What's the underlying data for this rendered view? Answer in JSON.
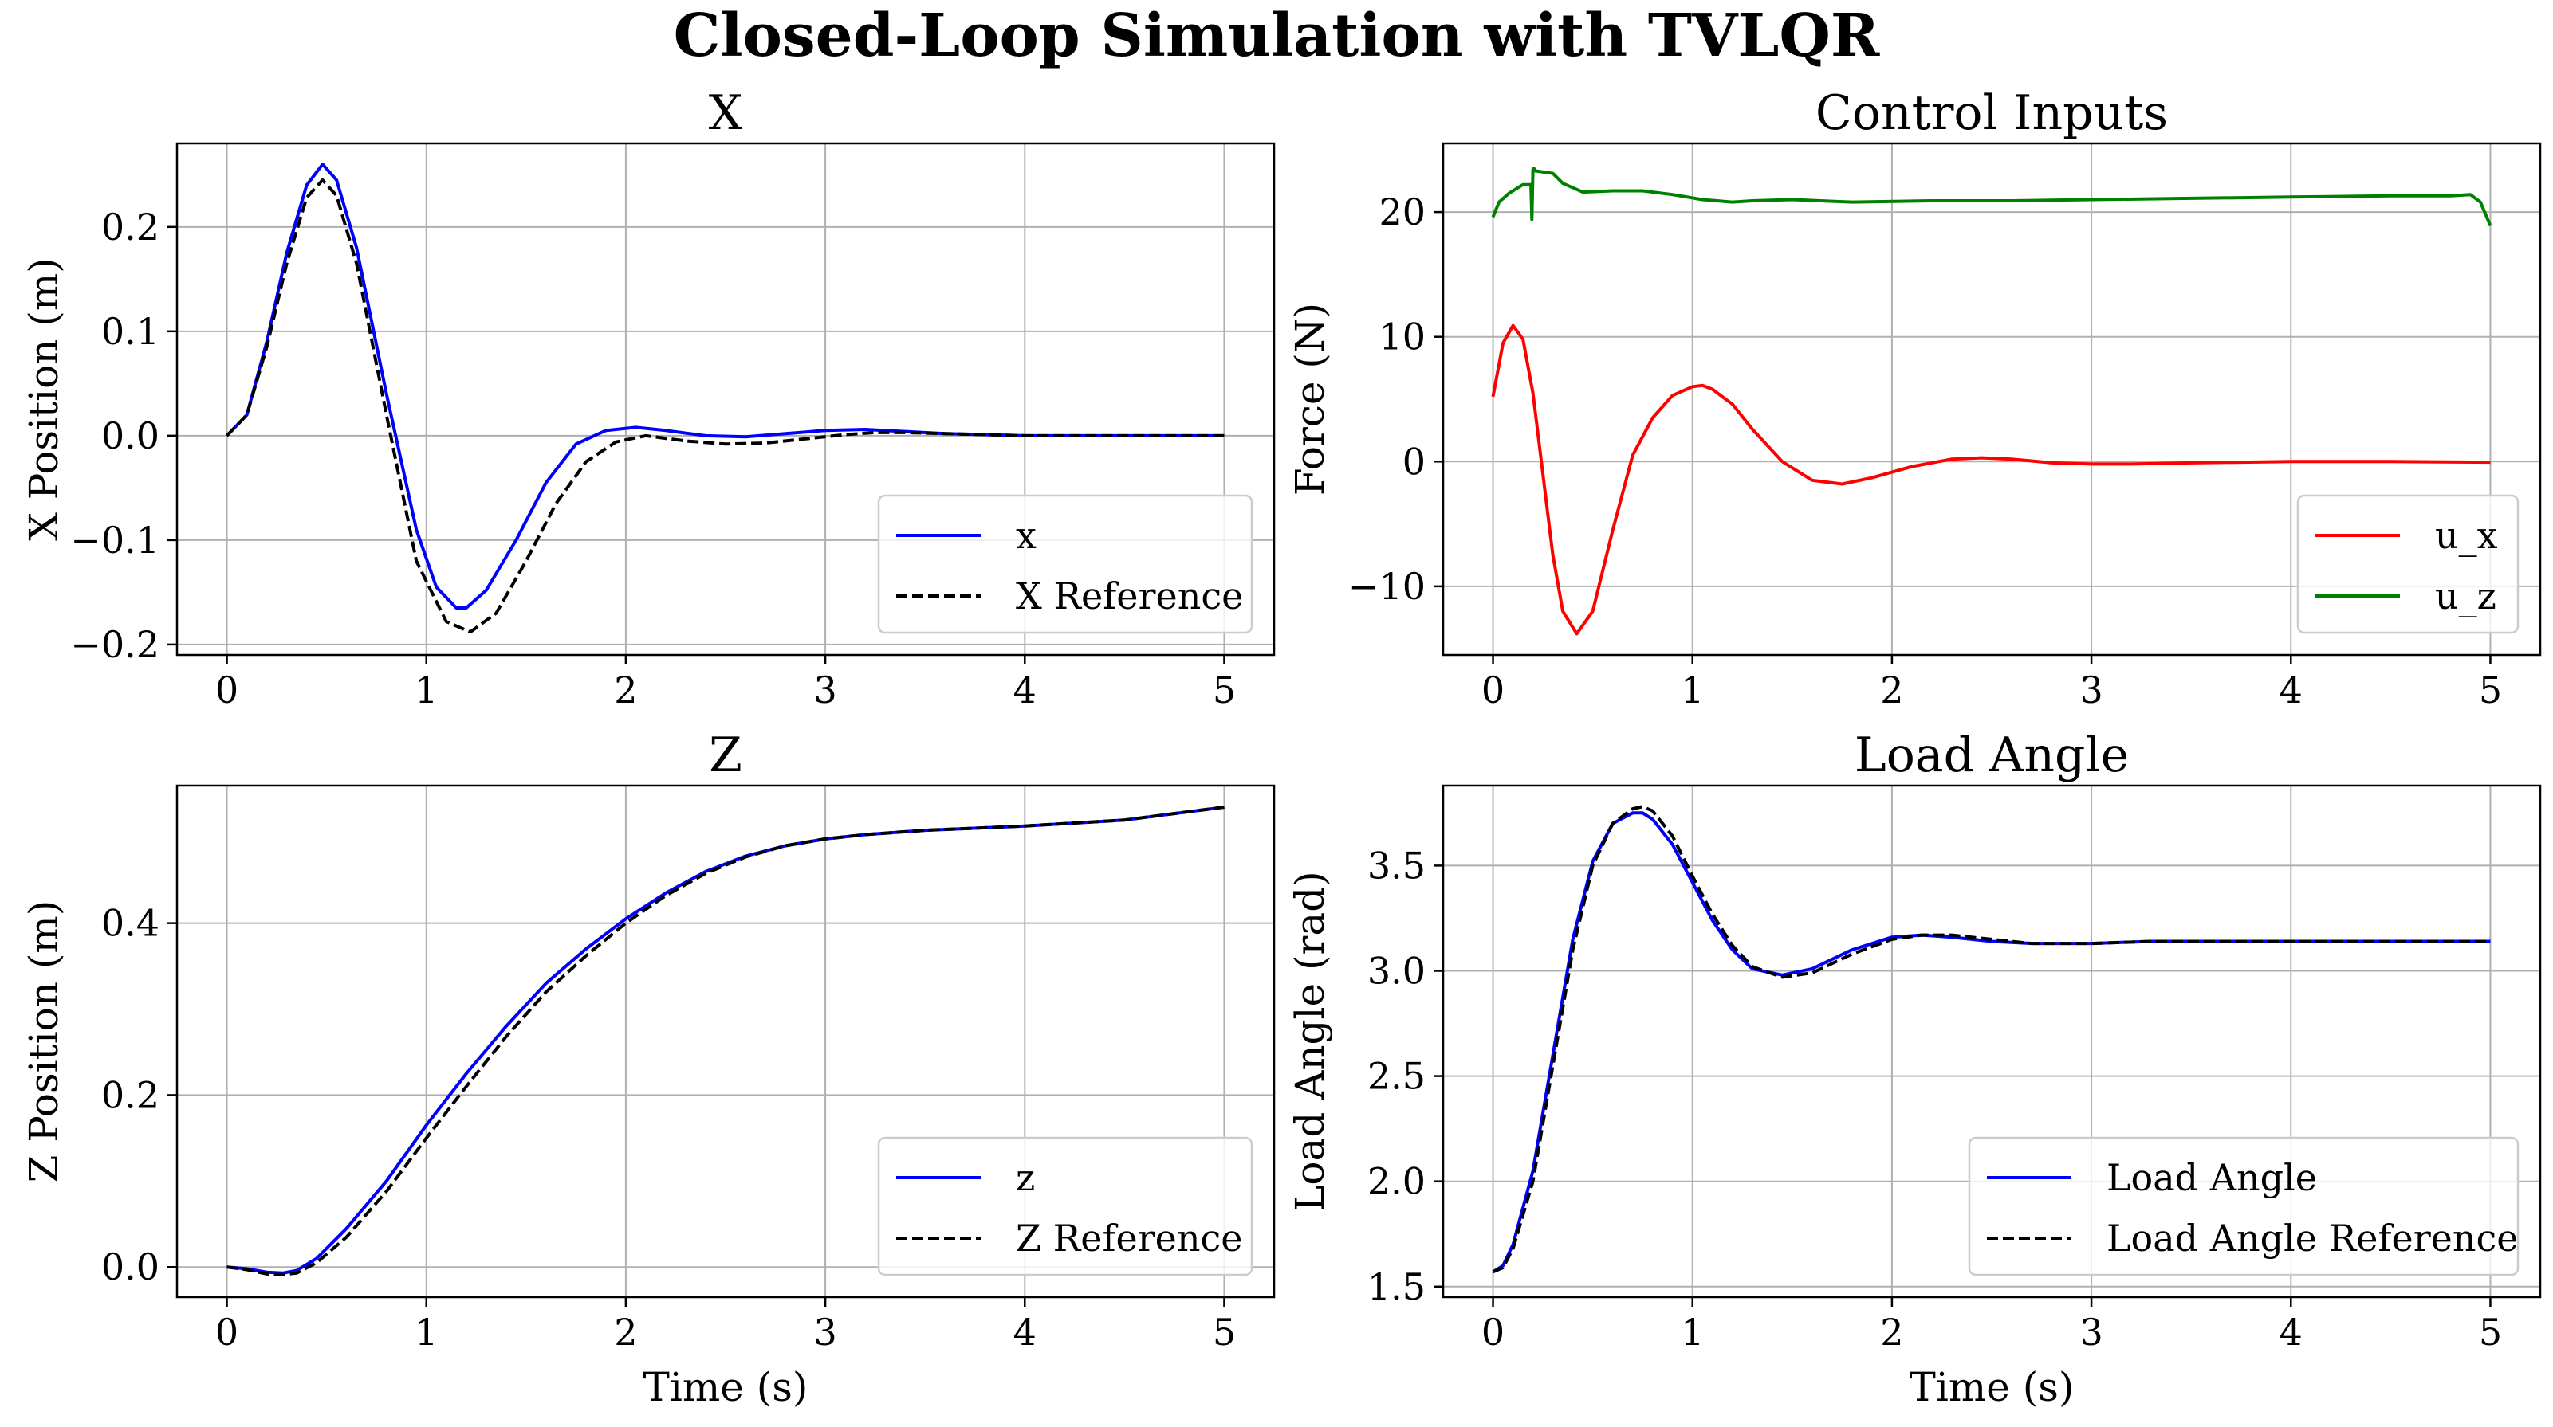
{
  "figure": {
    "title": "Closed-Loop Simulation with TVLQR"
  },
  "chart_data": [
    {
      "type": "line",
      "title": "X",
      "xlabel": "",
      "ylabel": "X Position (m)",
      "xlim": [
        -0.25,
        5.25
      ],
      "ylim": [
        -0.21,
        0.28
      ],
      "xticks": [
        0,
        1,
        2,
        3,
        4,
        5
      ],
      "xtick_labels": [
        "0",
        "1",
        "2",
        "3",
        "4",
        "5"
      ],
      "yticks": [
        -0.2,
        -0.1,
        0.0,
        0.1,
        0.2
      ],
      "ytick_labels": [
        "−0.2",
        "−0.1",
        "0.0",
        "0.1",
        "0.2"
      ],
      "grid": true,
      "legend": "lower-right",
      "series": [
        {
          "name": "x",
          "color": "#0000ff",
          "dash": "solid",
          "x": [
            0,
            0.1,
            0.2,
            0.3,
            0.4,
            0.48,
            0.55,
            0.65,
            0.8,
            0.95,
            1.05,
            1.15,
            1.2,
            1.3,
            1.45,
            1.6,
            1.75,
            1.9,
            2.05,
            2.2,
            2.4,
            2.6,
            2.8,
            3.0,
            3.2,
            3.4,
            3.6,
            3.8,
            4.0,
            4.5,
            5.0
          ],
          "y": [
            0,
            0.02,
            0.09,
            0.175,
            0.24,
            0.26,
            0.245,
            0.18,
            0.04,
            -0.09,
            -0.145,
            -0.165,
            -0.165,
            -0.148,
            -0.1,
            -0.045,
            -0.008,
            0.005,
            0.008,
            0.005,
            0,
            -0.001,
            0.002,
            0.005,
            0.006,
            0.004,
            0.002,
            0.001,
            0,
            0,
            0
          ]
        },
        {
          "name": "X Reference",
          "color": "#000000",
          "dash": "dashed",
          "x": [
            0,
            0.1,
            0.2,
            0.3,
            0.4,
            0.48,
            0.55,
            0.65,
            0.8,
            0.95,
            1.1,
            1.22,
            1.35,
            1.5,
            1.65,
            1.8,
            1.95,
            2.1,
            2.3,
            2.5,
            2.7,
            2.9,
            3.1,
            3.25,
            3.4,
            3.6,
            3.8,
            4.0,
            4.5,
            5.0
          ],
          "y": [
            0,
            0.02,
            0.085,
            0.165,
            0.228,
            0.245,
            0.23,
            0.165,
            0.02,
            -0.12,
            -0.178,
            -0.188,
            -0.17,
            -0.12,
            -0.065,
            -0.025,
            -0.006,
            0,
            -0.005,
            -0.008,
            -0.007,
            -0.003,
            0.001,
            0.003,
            0.003,
            0.002,
            0.001,
            0,
            0,
            0
          ]
        }
      ]
    },
    {
      "type": "line",
      "title": "Control Inputs",
      "xlabel": "",
      "ylabel": "Force (N)",
      "xlim": [
        -0.25,
        5.25
      ],
      "ylim": [
        -15.5,
        25.5
      ],
      "xticks": [
        0,
        1,
        2,
        3,
        4,
        5
      ],
      "xtick_labels": [
        "0",
        "1",
        "2",
        "3",
        "4",
        "5"
      ],
      "yticks": [
        -10,
        0,
        10,
        20
      ],
      "ytick_labels": [
        "−10",
        "0",
        "10",
        "20"
      ],
      "grid": true,
      "legend": "lower-right",
      "series": [
        {
          "name": "u_x",
          "color": "#ff0000",
          "dash": "solid",
          "x": [
            0,
            0.05,
            0.1,
            0.15,
            0.2,
            0.25,
            0.3,
            0.35,
            0.42,
            0.5,
            0.6,
            0.7,
            0.8,
            0.9,
            1.0,
            1.05,
            1.1,
            1.2,
            1.3,
            1.45,
            1.6,
            1.75,
            1.9,
            2.1,
            2.3,
            2.45,
            2.6,
            2.8,
            3.0,
            3.2,
            3.5,
            4.0,
            4.5,
            5.0
          ],
          "y": [
            5.2,
            9.5,
            10.9,
            9.8,
            5.5,
            -1,
            -7.5,
            -12,
            -13.8,
            -12,
            -5.5,
            0.5,
            3.5,
            5.3,
            6,
            6.1,
            5.8,
            4.6,
            2.6,
            0,
            -1.5,
            -1.8,
            -1.3,
            -0.4,
            0.2,
            0.3,
            0.2,
            -0.1,
            -0.2,
            -0.2,
            -0.1,
            0,
            0,
            -0.05
          ]
        },
        {
          "name": "u_z",
          "color": "#008000",
          "dash": "solid",
          "x": [
            0,
            0.03,
            0.08,
            0.15,
            0.19,
            0.195,
            0.2,
            0.205,
            0.21,
            0.3,
            0.35,
            0.45,
            0.6,
            0.75,
            0.9,
            1.05,
            1.2,
            1.3,
            1.5,
            1.8,
            2.2,
            2.6,
            3.0,
            3.5,
            4.0,
            4.5,
            4.8,
            4.9,
            4.95,
            5.0
          ],
          "y": [
            19.6,
            20.8,
            21.5,
            22.2,
            22.2,
            19.4,
            23.4,
            23.5,
            23.3,
            23.1,
            22.3,
            21.6,
            21.7,
            21.7,
            21.4,
            21.0,
            20.8,
            20.9,
            21.0,
            20.8,
            20.9,
            20.9,
            21.0,
            21.1,
            21.2,
            21.3,
            21.3,
            21.4,
            20.8,
            18.9
          ]
        }
      ]
    },
    {
      "type": "line",
      "title": "Z",
      "xlabel": "Time (s)",
      "ylabel": "Z Position (m)",
      "xlim": [
        -0.25,
        5.25
      ],
      "ylim": [
        -0.035,
        0.56
      ],
      "xticks": [
        0,
        1,
        2,
        3,
        4,
        5
      ],
      "xtick_labels": [
        "0",
        "1",
        "2",
        "3",
        "4",
        "5"
      ],
      "yticks": [
        0.0,
        0.2,
        0.4
      ],
      "ytick_labels": [
        "0.0",
        "0.2",
        "0.4"
      ],
      "grid": true,
      "legend": "lower-right",
      "series": [
        {
          "name": "z",
          "color": "#0000ff",
          "dash": "solid",
          "x": [
            0,
            0.1,
            0.2,
            0.28,
            0.35,
            0.45,
            0.6,
            0.8,
            1.0,
            1.2,
            1.4,
            1.6,
            1.8,
            2.0,
            2.2,
            2.4,
            2.6,
            2.8,
            3.0,
            3.2,
            3.5,
            4.0,
            4.5,
            5.0
          ],
          "y": [
            0,
            -0.002,
            -0.006,
            -0.007,
            -0.004,
            0.01,
            0.045,
            0.1,
            0.165,
            0.225,
            0.28,
            0.33,
            0.37,
            0.405,
            0.435,
            0.46,
            0.478,
            0.49,
            0.498,
            0.503,
            0.508,
            0.513,
            0.52,
            0.535
          ]
        },
        {
          "name": "Z Reference",
          "color": "#000000",
          "dash": "dashed",
          "x": [
            0,
            0.1,
            0.2,
            0.28,
            0.35,
            0.45,
            0.6,
            0.8,
            1.0,
            1.2,
            1.4,
            1.6,
            1.8,
            2.0,
            2.2,
            2.4,
            2.6,
            2.8,
            3.0,
            3.2,
            3.5,
            4.0,
            4.5,
            5.0
          ],
          "y": [
            0,
            -0.003,
            -0.008,
            -0.009,
            -0.007,
            0.005,
            0.035,
            0.088,
            0.15,
            0.21,
            0.268,
            0.32,
            0.362,
            0.4,
            0.432,
            0.458,
            0.477,
            0.49,
            0.498,
            0.503,
            0.508,
            0.513,
            0.52,
            0.535
          ]
        }
      ]
    },
    {
      "type": "line",
      "title": "Load Angle",
      "xlabel": "Time (s)",
      "ylabel": "Load Angle (rad)",
      "xlim": [
        -0.25,
        5.25
      ],
      "ylim": [
        1.45,
        3.88
      ],
      "xticks": [
        0,
        1,
        2,
        3,
        4,
        5
      ],
      "xtick_labels": [
        "0",
        "1",
        "2",
        "3",
        "4",
        "5"
      ],
      "yticks": [
        1.5,
        2.0,
        2.5,
        3.0,
        3.5
      ],
      "ytick_labels": [
        "1.5",
        "2.0",
        "2.5",
        "3.0",
        "3.5"
      ],
      "grid": true,
      "legend": "lower-right",
      "series": [
        {
          "name": "Load Angle",
          "color": "#0000ff",
          "dash": "solid",
          "x": [
            0,
            0.05,
            0.1,
            0.2,
            0.3,
            0.4,
            0.5,
            0.6,
            0.7,
            0.75,
            0.8,
            0.9,
            1.0,
            1.1,
            1.2,
            1.3,
            1.45,
            1.6,
            1.8,
            2.0,
            2.15,
            2.3,
            2.5,
            2.7,
            3.0,
            3.3,
            3.6,
            4.0,
            4.5,
            5.0
          ],
          "y": [
            1.57,
            1.6,
            1.7,
            2.05,
            2.6,
            3.15,
            3.52,
            3.7,
            3.75,
            3.75,
            3.72,
            3.6,
            3.42,
            3.24,
            3.1,
            3.01,
            2.98,
            3.01,
            3.1,
            3.16,
            3.17,
            3.16,
            3.14,
            3.13,
            3.13,
            3.14,
            3.14,
            3.14,
            3.14,
            3.14
          ]
        },
        {
          "name": "Load Angle Reference",
          "color": "#000000",
          "dash": "dashed",
          "x": [
            0,
            0.05,
            0.1,
            0.2,
            0.3,
            0.4,
            0.5,
            0.6,
            0.7,
            0.75,
            0.8,
            0.9,
            1.0,
            1.1,
            1.2,
            1.3,
            1.45,
            1.6,
            1.8,
            2.0,
            2.15,
            2.3,
            2.5,
            2.7,
            3.0,
            3.3,
            3.6,
            4.0,
            4.5,
            5.0
          ],
          "y": [
            1.57,
            1.59,
            1.68,
            2.0,
            2.55,
            3.1,
            3.5,
            3.7,
            3.77,
            3.78,
            3.76,
            3.64,
            3.45,
            3.27,
            3.12,
            3.02,
            2.97,
            2.99,
            3.08,
            3.15,
            3.17,
            3.17,
            3.15,
            3.13,
            3.13,
            3.14,
            3.14,
            3.14,
            3.14,
            3.14
          ]
        }
      ]
    }
  ]
}
